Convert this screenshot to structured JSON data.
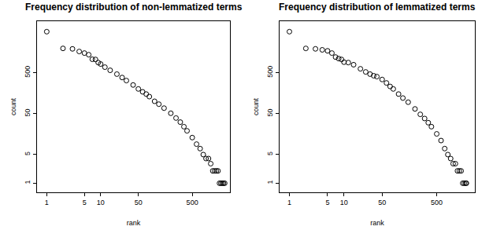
{
  "chart_data": [
    {
      "type": "scatter",
      "title": "Frequency distribution of non-lemmatized terms",
      "xlabel": "rank",
      "ylabel": "count",
      "x": [
        1,
        2,
        3,
        4,
        5,
        6,
        7,
        8,
        9,
        10,
        12,
        15,
        20,
        25,
        30,
        40,
        50,
        60,
        70,
        80,
        100,
        120,
        150,
        200,
        250,
        300,
        350,
        400,
        500,
        600,
        700,
        800,
        900,
        1000,
        1100,
        1200,
        1300,
        1400,
        1500,
        1600,
        1700,
        1800,
        1900,
        2000
      ],
      "values": [
        5000,
        1950,
        1900,
        1640,
        1500,
        1370,
        1060,
        1050,
        880,
        810,
        680,
        570,
        460,
        380,
        320,
        250,
        200,
        170,
        150,
        130,
        100,
        85,
        68,
        51,
        39,
        31,
        24,
        19,
        13,
        9,
        7,
        5,
        4,
        4,
        3,
        2,
        2,
        2,
        2,
        1,
        1,
        1,
        1,
        1
      ],
      "color": "#000000",
      "marker": "circle-open",
      "log": true,
      "grid": false,
      "xlim": [
        0.66,
        2500
      ],
      "ylim": [
        0.6,
        9000
      ],
      "xticks": [
        1,
        5,
        10,
        50,
        500
      ],
      "yticks": [
        1,
        5,
        50,
        500
      ]
    },
    {
      "type": "scatter",
      "title": "Frequency distribution of lemmatized terms",
      "xlabel": "rank",
      "ylabel": "count",
      "x": [
        1,
        2,
        3,
        4,
        5,
        6,
        7,
        8,
        9,
        10,
        12,
        15,
        20,
        25,
        30,
        35,
        40,
        50,
        60,
        70,
        80,
        100,
        120,
        150,
        200,
        250,
        300,
        350,
        400,
        500,
        600,
        700,
        800,
        900,
        1000,
        1100,
        1200,
        1300,
        1400,
        1500,
        1600,
        1700,
        1750
      ],
      "values": [
        5000,
        1950,
        1900,
        1800,
        1700,
        1500,
        1200,
        1100,
        1050,
        900,
        880,
        780,
        620,
        520,
        460,
        420,
        400,
        340,
        280,
        230,
        200,
        150,
        120,
        95,
        65,
        48,
        38,
        30,
        24,
        16,
        11,
        7,
        5,
        4,
        3,
        3,
        2,
        2,
        2,
        1,
        1,
        1,
        1
      ],
      "color": "#000000",
      "marker": "circle-open",
      "log": true,
      "grid": false,
      "xlim": [
        0.66,
        2500
      ],
      "ylim": [
        0.6,
        9000
      ],
      "xticks": [
        1,
        5,
        10,
        50,
        500
      ],
      "yticks": [
        1,
        5,
        50,
        500
      ]
    }
  ]
}
